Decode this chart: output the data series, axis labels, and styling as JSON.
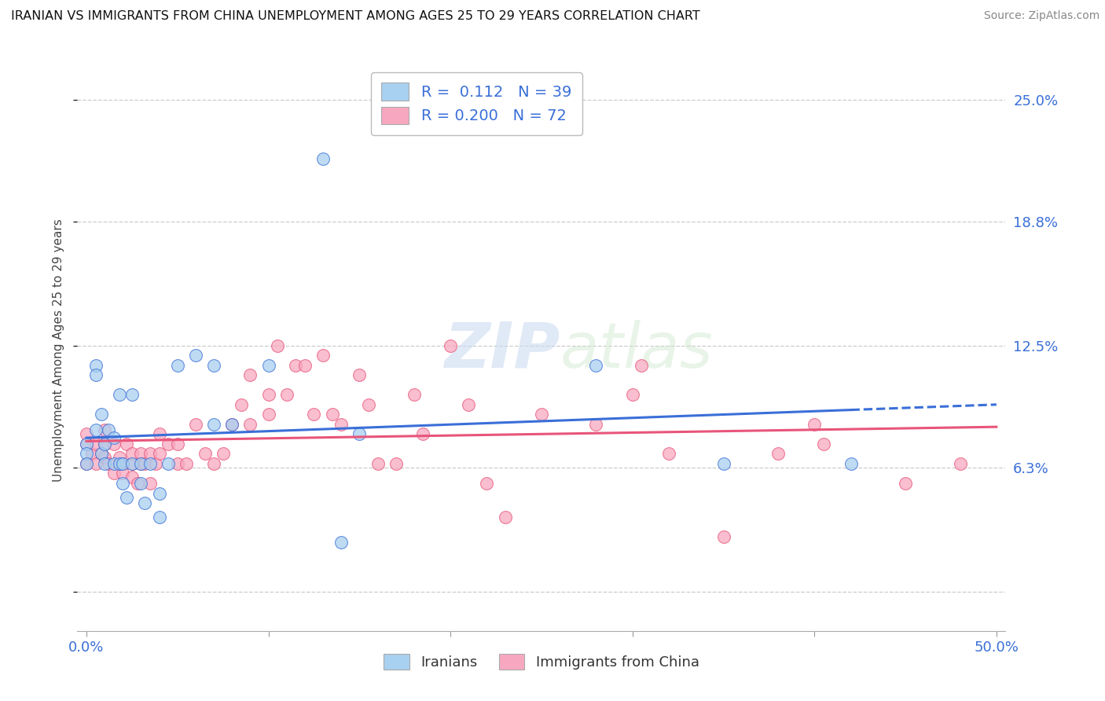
{
  "title": "IRANIAN VS IMMIGRANTS FROM CHINA UNEMPLOYMENT AMONG AGES 25 TO 29 YEARS CORRELATION CHART",
  "source": "Source: ZipAtlas.com",
  "ylabel": "Unemployment Among Ages 25 to 29 years",
  "xlim": [
    -0.005,
    0.505
  ],
  "ylim": [
    -0.02,
    0.265
  ],
  "ytick_values": [
    0.0,
    0.063,
    0.125,
    0.188,
    0.25
  ],
  "ytick_labels": [
    "",
    "6.3%",
    "12.5%",
    "18.8%",
    "25.0%"
  ],
  "xtick_values": [
    0.0,
    0.1,
    0.2,
    0.3,
    0.4,
    0.5
  ],
  "xtick_labels": [
    "0.0%",
    "",
    "",
    "",
    "",
    "50.0%"
  ],
  "legend_label_1": "Iranians",
  "legend_label_2": "Immigrants from China",
  "R1": 0.112,
  "N1": 39,
  "R2": 0.2,
  "N2": 72,
  "color_blue": "#A8D0F0",
  "color_pink": "#F7A8C0",
  "line_color_blue": "#3A6FD8",
  "line_color_pink": "#E8557A",
  "background_color": "#FFFFFF",
  "iranians_x": [
    0.0,
    0.0,
    0.0,
    0.005,
    0.005,
    0.008,
    0.008,
    0.01,
    0.01,
    0.012,
    0.015,
    0.015,
    0.018,
    0.018,
    0.02,
    0.02,
    0.022,
    0.025,
    0.025,
    0.03,
    0.03,
    0.032,
    0.035,
    0.04,
    0.04,
    0.045,
    0.05,
    0.06,
    0.07,
    0.07,
    0.08,
    0.1,
    0.13,
    0.14,
    0.15,
    0.28,
    0.35,
    0.42,
    0.005
  ],
  "iranians_y": [
    0.075,
    0.07,
    0.065,
    0.082,
    0.115,
    0.09,
    0.07,
    0.075,
    0.065,
    0.082,
    0.065,
    0.078,
    0.065,
    0.1,
    0.065,
    0.055,
    0.048,
    0.1,
    0.065,
    0.065,
    0.055,
    0.045,
    0.065,
    0.05,
    0.038,
    0.065,
    0.115,
    0.12,
    0.115,
    0.085,
    0.085,
    0.115,
    0.22,
    0.025,
    0.08,
    0.115,
    0.065,
    0.065,
    0.11
  ],
  "china_x": [
    0.0,
    0.0,
    0.0,
    0.003,
    0.005,
    0.005,
    0.008,
    0.01,
    0.01,
    0.01,
    0.012,
    0.015,
    0.015,
    0.018,
    0.02,
    0.02,
    0.022,
    0.025,
    0.025,
    0.025,
    0.028,
    0.03,
    0.03,
    0.032,
    0.035,
    0.035,
    0.038,
    0.04,
    0.04,
    0.045,
    0.05,
    0.05,
    0.055,
    0.06,
    0.065,
    0.07,
    0.075,
    0.08,
    0.085,
    0.09,
    0.09,
    0.1,
    0.1,
    0.105,
    0.11,
    0.115,
    0.12,
    0.125,
    0.13,
    0.135,
    0.14,
    0.15,
    0.155,
    0.16,
    0.17,
    0.18,
    0.185,
    0.2,
    0.21,
    0.22,
    0.23,
    0.25,
    0.28,
    0.3,
    0.305,
    0.32,
    0.35,
    0.38,
    0.4,
    0.405,
    0.45,
    0.48
  ],
  "china_y": [
    0.075,
    0.08,
    0.065,
    0.07,
    0.075,
    0.065,
    0.07,
    0.068,
    0.075,
    0.082,
    0.065,
    0.075,
    0.06,
    0.068,
    0.065,
    0.06,
    0.075,
    0.065,
    0.058,
    0.07,
    0.055,
    0.07,
    0.065,
    0.065,
    0.055,
    0.07,
    0.065,
    0.08,
    0.07,
    0.075,
    0.075,
    0.065,
    0.065,
    0.085,
    0.07,
    0.065,
    0.07,
    0.085,
    0.095,
    0.085,
    0.11,
    0.09,
    0.1,
    0.125,
    0.1,
    0.115,
    0.115,
    0.09,
    0.12,
    0.09,
    0.085,
    0.11,
    0.095,
    0.065,
    0.065,
    0.1,
    0.08,
    0.125,
    0.095,
    0.055,
    0.038,
    0.09,
    0.085,
    0.1,
    0.115,
    0.07,
    0.028,
    0.07,
    0.085,
    0.075,
    0.055,
    0.065
  ]
}
